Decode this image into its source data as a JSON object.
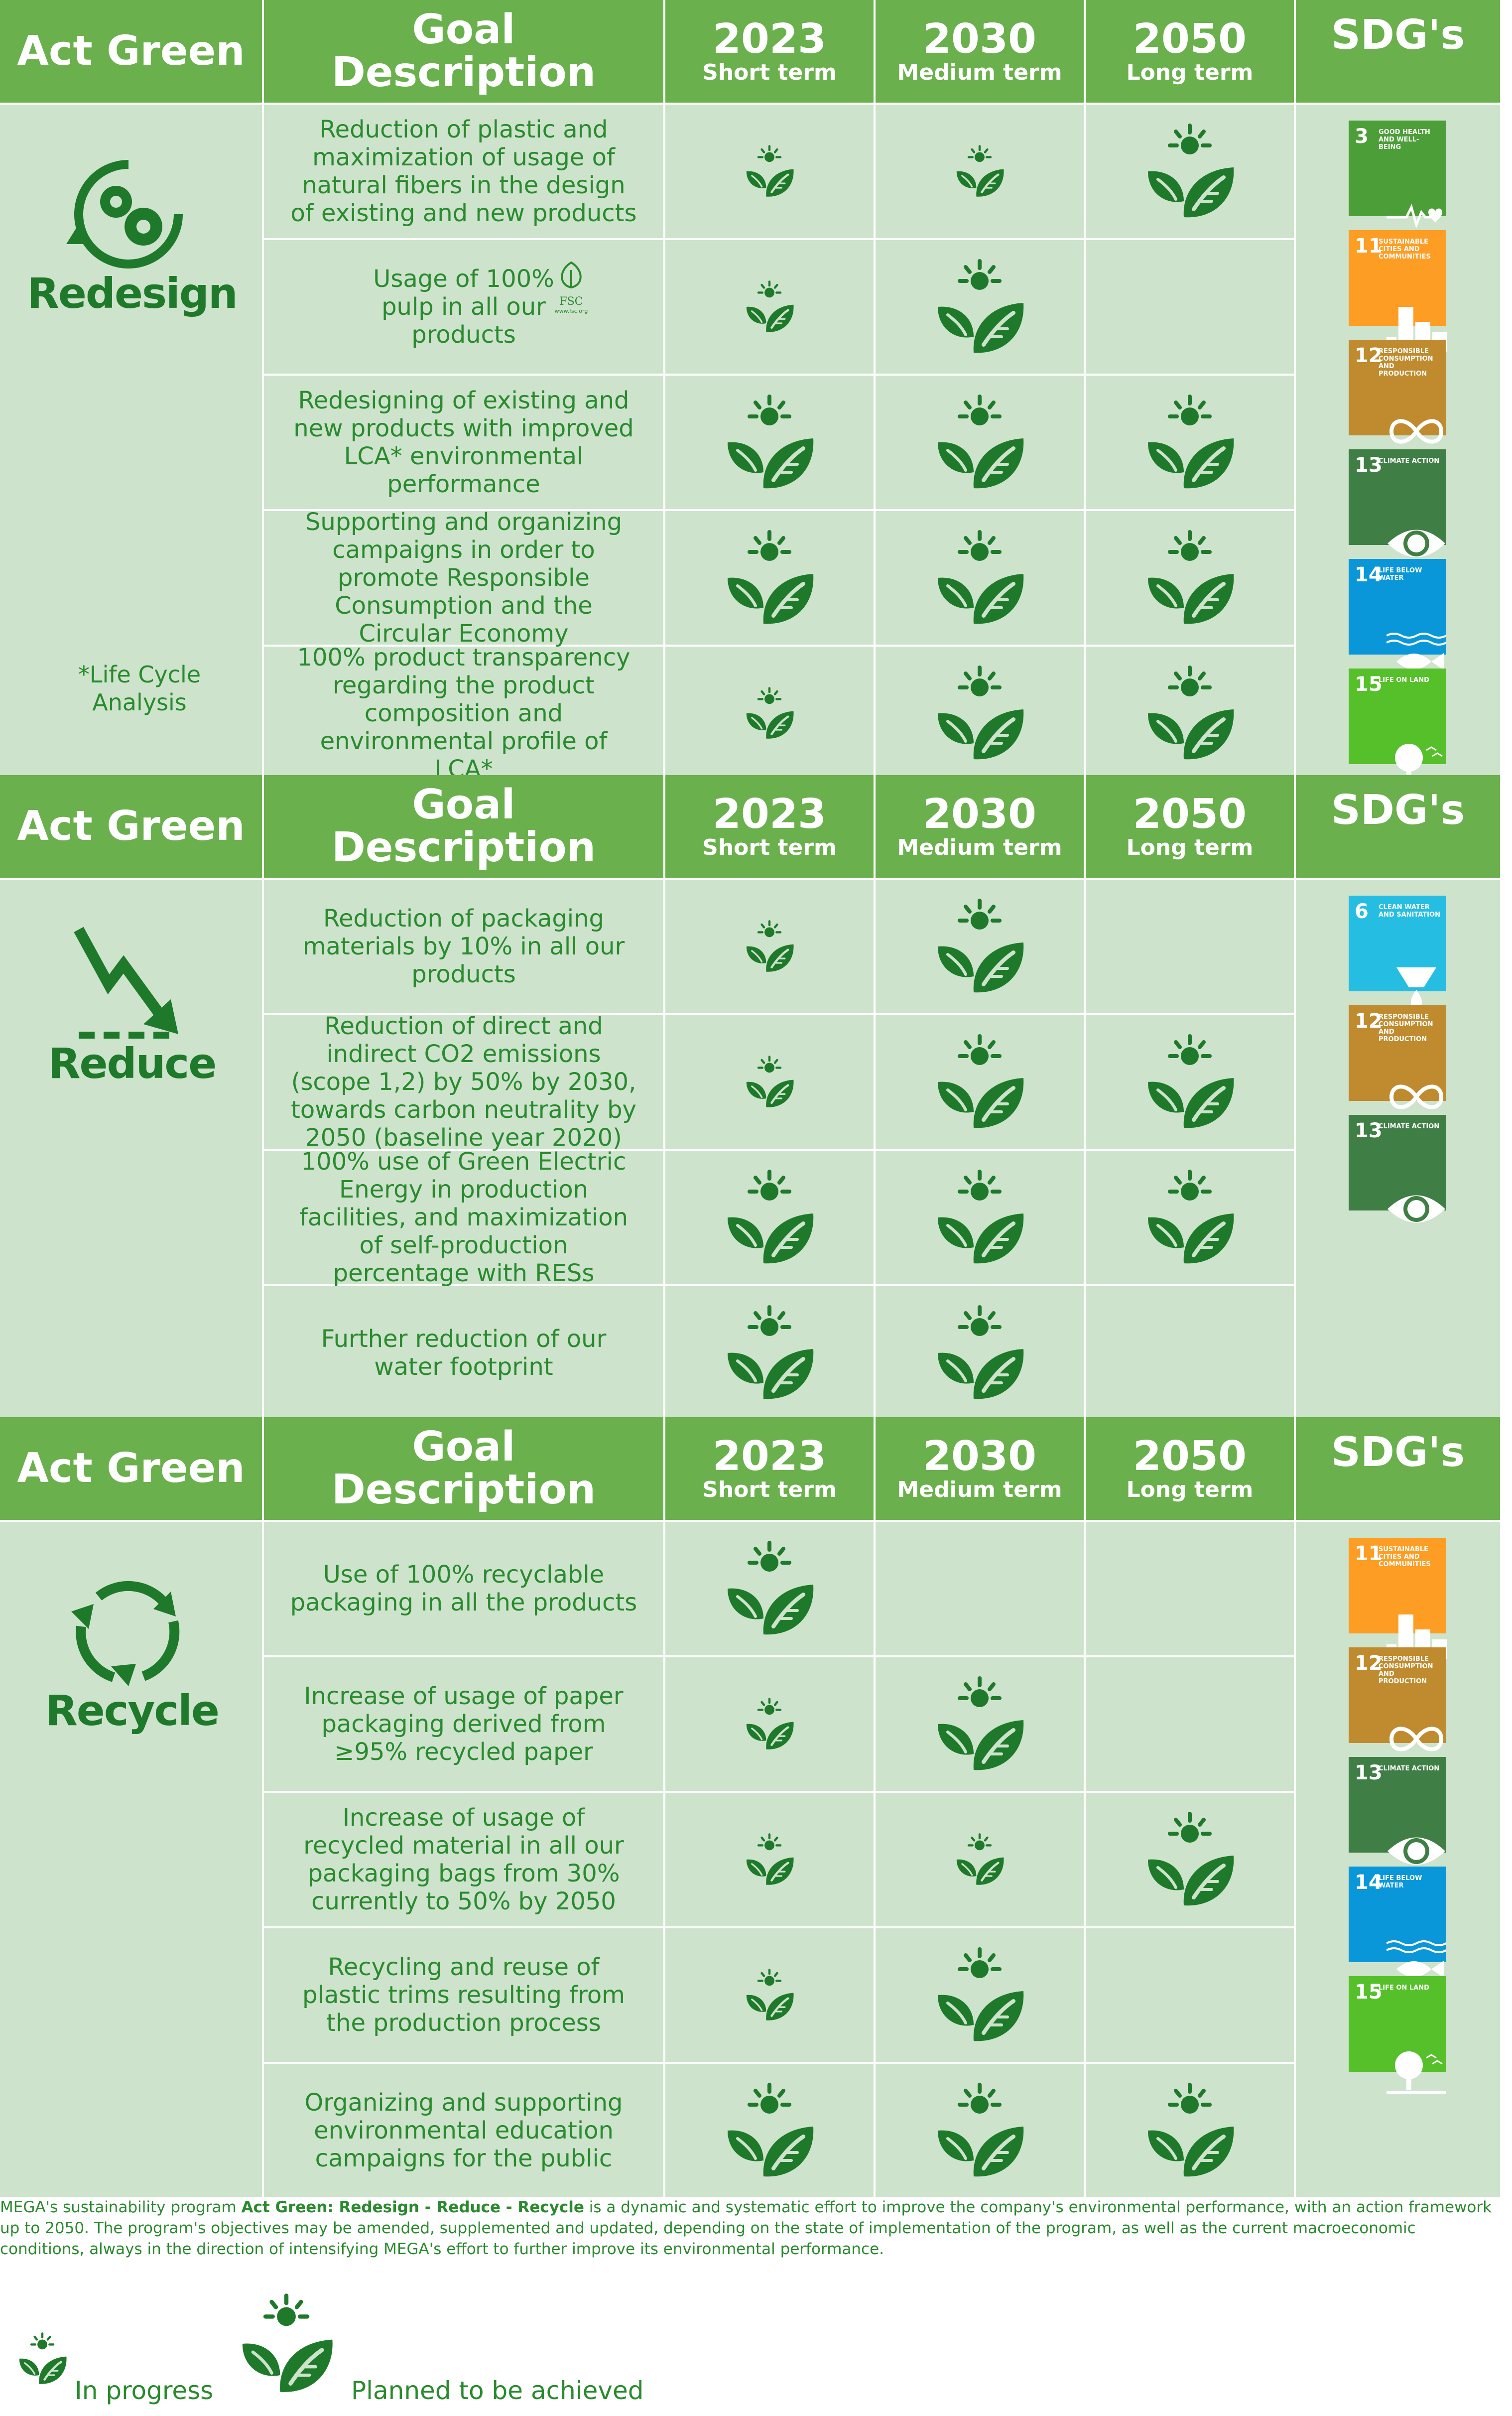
{
  "header": {
    "act_green": "Act Green",
    "goal_line1": "Goal",
    "goal_line2": "Description",
    "y2023": "2023",
    "short": "Short term",
    "y2030": "2030",
    "medium": "Medium term",
    "y2050": "2050",
    "long": "Long term",
    "sdgs": "SDG's"
  },
  "sections": [
    {
      "category": "Redesign",
      "note": "*Life Cycle Analysis",
      "rows": [
        {
          "goal": "Reduction of plastic and maximization of usage of natural fibers in the design of existing and new products",
          "s2023": "progress",
          "s2030": "progress",
          "s2050": "planned"
        },
        {
          "goal": "Usage of 100% pulp in all our products",
          "s2023": "progress",
          "s2030": "planned",
          "s2050": ""
        },
        {
          "goal": "Redesigning of existing and new products with improved LCA* environmental performance",
          "s2023": "planned",
          "s2030": "planned",
          "s2050": "planned"
        },
        {
          "goal": "Supporting and organizing campaigns in order to promote Responsible Consumption and the Circular Economy",
          "s2023": "planned",
          "s2030": "planned",
          "s2050": "planned"
        },
        {
          "goal": "100% product transparency regarding the product composition and environmental profile of LCA*",
          "s2023": "progress",
          "s2030": "planned",
          "s2050": "planned"
        }
      ],
      "sdgs": [
        {
          "num": "3",
          "label": "Good health and well-being",
          "color": "#4c9f38",
          "icon": "heartbeat-icon"
        },
        {
          "num": "11",
          "label": "Sustainable cities and communities",
          "color": "#fd9d24",
          "icon": "city-icon"
        },
        {
          "num": "12",
          "label": "Responsible consumption and production",
          "color": "#bf8b2e",
          "icon": "infinity-icon"
        },
        {
          "num": "13",
          "label": "Climate action",
          "color": "#3f7e44",
          "icon": "eye-globe-icon"
        },
        {
          "num": "14",
          "label": "Life below water",
          "color": "#0a97d9",
          "icon": "fish-icon"
        },
        {
          "num": "15",
          "label": "Life on land",
          "color": "#56c02b",
          "icon": "tree-icon"
        }
      ]
    },
    {
      "category": "Reduce",
      "note": "",
      "rows": [
        {
          "goal": "Reduction of packaging materials by 10% in all our products",
          "s2023": "progress",
          "s2030": "planned",
          "s2050": ""
        },
        {
          "goal": "Reduction of direct and indirect CO2 emissions (scope 1,2) by 50% by 2030, towards carbon neutrality by 2050 (baseline year 2020)",
          "s2023": "progress",
          "s2030": "planned",
          "s2050": "planned"
        },
        {
          "goal": "100% use of Green Electric Energy in production facilities, and maximization of self-production percentage with RESs",
          "s2023": "planned",
          "s2030": "planned",
          "s2050": "planned"
        },
        {
          "goal": "Further reduction of our water footprint",
          "s2023": "planned",
          "s2030": "planned",
          "s2050": ""
        }
      ],
      "sdgs": [
        {
          "num": "6",
          "label": "Clean water and sanitation",
          "color": "#26bde2",
          "icon": "water-drop-icon"
        },
        {
          "num": "12",
          "label": "Responsible consumption and production",
          "color": "#bf8b2e",
          "icon": "infinity-icon"
        },
        {
          "num": "13",
          "label": "Climate action",
          "color": "#3f7e44",
          "icon": "eye-globe-icon"
        }
      ]
    },
    {
      "category": "Recycle",
      "note": "",
      "rows": [
        {
          "goal": "Use of 100% recyclable packaging in all the products",
          "s2023": "planned",
          "s2030": "",
          "s2050": ""
        },
        {
          "goal": "Increase of usage of paper packaging derived from ≥95% recycled paper",
          "s2023": "progress",
          "s2030": "planned",
          "s2050": ""
        },
        {
          "goal": "Increase of usage of recycled material in all our packaging bags from 30% currently to 50% by 2050",
          "s2023": "progress",
          "s2030": "progress",
          "s2050": "planned"
        },
        {
          "goal": "Recycling and reuse of plastic trims resulting from the production process",
          "s2023": "progress",
          "s2030": "planned",
          "s2050": ""
        },
        {
          "goal": "Organizing and supporting environmental education campaigns for the public",
          "s2023": "planned",
          "s2030": "planned",
          "s2050": "planned"
        }
      ],
      "sdgs": [
        {
          "num": "11",
          "label": "Sustainable cities and communities",
          "color": "#fd9d24",
          "icon": "city-icon"
        },
        {
          "num": "12",
          "label": "Responsible consumption and production",
          "color": "#bf8b2e",
          "icon": "infinity-icon"
        },
        {
          "num": "13",
          "label": "Climate action",
          "color": "#3f7e44",
          "icon": "eye-globe-icon"
        },
        {
          "num": "14",
          "label": "Life below water",
          "color": "#0a97d9",
          "icon": "fish-icon"
        },
        {
          "num": "15",
          "label": "Life on land",
          "color": "#56c02b",
          "icon": "tree-icon"
        }
      ]
    }
  ],
  "footnote": {
    "part1": "MEGA's sustainability program ",
    "bold": "Act Green: Redesign - Reduce - Recycle",
    "part2": " is a dynamic and systematic effort to improve the company's environmental performance, with an action framework up to 2050. The program's objectives may be amended, supplemented and updated, depending on the state of implementation of the program, as well as the current macroeconomic conditions, always in the direction of intensifying MEGA's effort to further improve its environmental performance."
  },
  "legend": {
    "in_progress": "In progress",
    "planned": "Planned to be achieved"
  },
  "fsc_label": "FSC",
  "fsc_url": "www.fsc.org",
  "colors": {
    "header": "#6ab04c",
    "cell": "#cde3cc",
    "text": "#2a8a2e",
    "icon": "#1e7a2a"
  }
}
